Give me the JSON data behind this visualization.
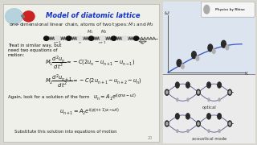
{
  "bg_color": "#d8d8d0",
  "left_panel_bg": "#f0f0eb",
  "left_panel_border": "#bbbbbb",
  "title": "Model of diatomic lattice",
  "title_color": "#1133cc",
  "title_fontsize": 6.0,
  "line1_fontsize": 4.2,
  "treat_fontsize": 4.0,
  "eq_fontsize": 4.8,
  "right_panel_bg": "#e0e8e0",
  "right_top_bg": "#dce4f0",
  "optical_label": "optical",
  "acoustical_label": "acoustical mode",
  "logo_text": "Physics by Rhino",
  "sphere_light": "#b0d0dc",
  "sphere_red": "#cc2222",
  "dark_ball": "#2a2a2a",
  "light_ball": "#b0b0b0",
  "curve_color": "#3355bb",
  "wave_color": "#555599"
}
